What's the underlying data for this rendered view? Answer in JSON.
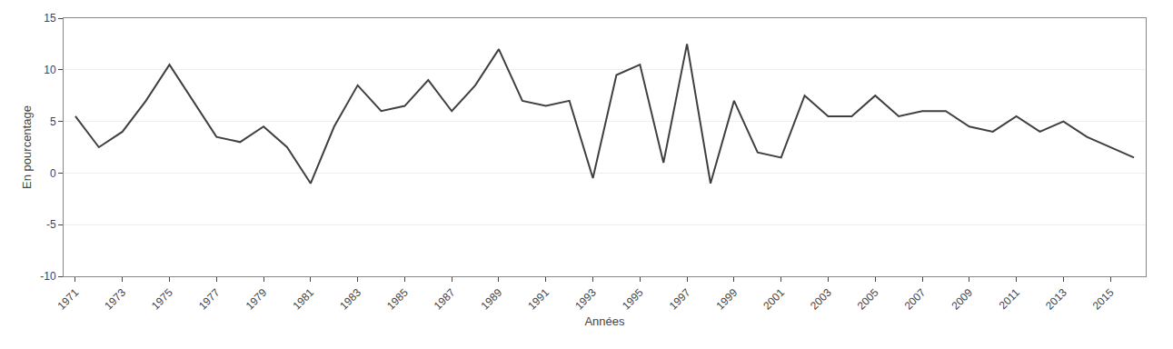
{
  "chart_data": {
    "type": "line",
    "x": [
      1971,
      1972,
      1973,
      1974,
      1975,
      1976,
      1977,
      1978,
      1979,
      1980,
      1981,
      1982,
      1983,
      1984,
      1985,
      1986,
      1987,
      1988,
      1989,
      1990,
      1991,
      1992,
      1993,
      1994,
      1995,
      1996,
      1997,
      1998,
      1999,
      2000,
      2001,
      2002,
      2003,
      2004,
      2005,
      2006,
      2007,
      2008,
      2009,
      2010,
      2011,
      2012,
      2013,
      2014,
      2015,
      2016
    ],
    "values": [
      5.5,
      2.5,
      4.0,
      7.0,
      10.5,
      7.0,
      3.5,
      3.0,
      4.5,
      2.5,
      -1.0,
      4.5,
      8.5,
      6.0,
      6.5,
      9.0,
      6.0,
      8.5,
      12.0,
      7.0,
      6.5,
      7.0,
      -0.5,
      9.5,
      10.5,
      1.0,
      12.5,
      -1.0,
      7.0,
      2.0,
      1.5,
      7.5,
      5.5,
      5.5,
      7.5,
      5.5,
      6.0,
      6.0,
      4.5,
      4.0,
      5.5,
      4.0,
      5.0,
      3.5,
      2.5,
      1.5
    ],
    "xlabel": "Années",
    "ylabel": "En pourcentage",
    "xlim": [
      1970.5,
      2016.5
    ],
    "xticks": [
      1971,
      1973,
      1975,
      1977,
      1979,
      1981,
      1983,
      1985,
      1987,
      1989,
      1991,
      1993,
      1995,
      1997,
      1999,
      2001,
      2003,
      2005,
      2007,
      2009,
      2011,
      2013,
      2015
    ],
    "ylim": [
      -10,
      15
    ],
    "yticks": [
      -10,
      -5,
      0,
      5,
      10,
      15
    ],
    "color": "#404040",
    "grid": true
  }
}
